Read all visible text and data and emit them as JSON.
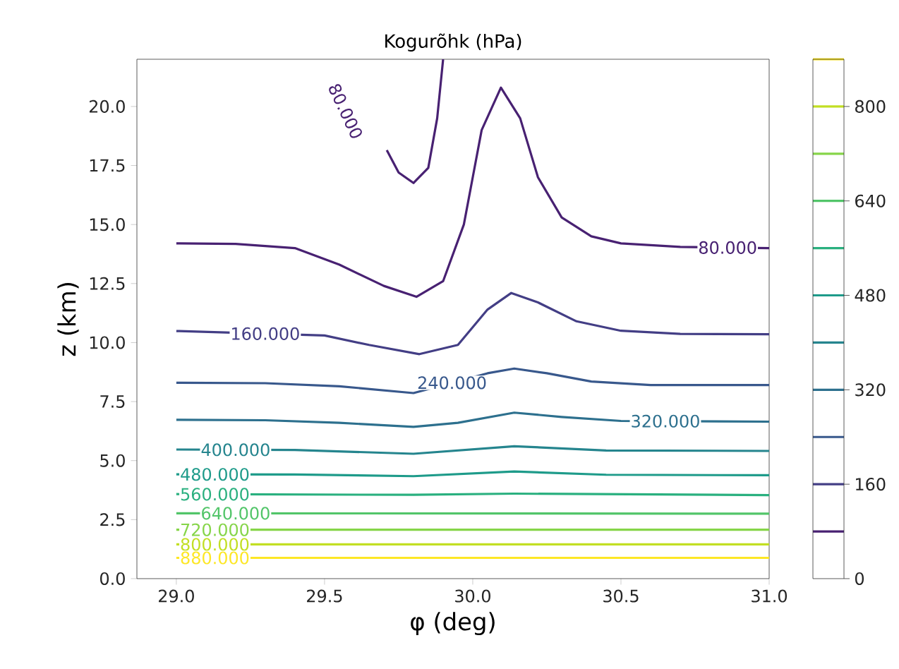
{
  "chart_data": {
    "type": "line",
    "title": "Kogurõhk (hPa)",
    "xlabel": "φ (deg)",
    "ylabel": "z (km)",
    "xlim": [
      28.867,
      31.0
    ],
    "ylim": [
      0,
      22
    ],
    "xticks": [
      {
        "value": 29.0,
        "label": "29.0"
      },
      {
        "value": 29.5,
        "label": "29.5"
      },
      {
        "value": 30.0,
        "label": "30.0"
      },
      {
        "value": 30.5,
        "label": "30.5"
      },
      {
        "value": 31.0,
        "label": "31.0"
      }
    ],
    "yticks": [
      {
        "value": 0,
        "label": "0.0"
      },
      2.5,
      {
        "value": 5,
        "label": "5.0"
      },
      7.5,
      {
        "value": 10,
        "label": "10.0"
      },
      12.5,
      {
        "value": 15,
        "label": "15.0"
      },
      17.5,
      {
        "value": 20,
        "label": "20.0"
      }
    ],
    "grid": false,
    "marker": "none",
    "line_style": "solid",
    "annotations": [
      "80.000",
      "0",
      "160",
      "320",
      "480",
      "640",
      "800"
    ],
    "series": [
      {
        "name": "80.000",
        "color": "#482172",
        "x": [
          29.0,
          29.2,
          29.4,
          29.55,
          29.7,
          29.81,
          29.9,
          29.97,
          30.03,
          30.095,
          30.16,
          30.22,
          30.3,
          30.4,
          30.5,
          30.7,
          31.0,
          30.0,
          29.71,
          29.75,
          29.8,
          29.85,
          29.88,
          29.9
        ],
        "values": [
          14.2,
          14.18,
          14.0,
          13.3,
          12.4,
          11.94,
          12.6,
          15.0,
          19.0,
          20.8,
          19.5,
          17.0,
          15.3,
          14.5,
          14.2,
          14.05,
          14.0,
          null,
          18.15,
          17.2,
          16.76,
          17.4,
          19.5,
          22.0
        ]
      },
      {
        "name": "160.000",
        "color": "#433e85",
        "x": [
          29.0,
          29.5,
          29.65,
          29.82,
          29.95,
          30.05,
          30.13,
          30.22,
          30.35,
          30.5,
          30.7,
          31.0
        ],
        "values": [
          10.49,
          10.3,
          9.9,
          9.51,
          9.9,
          11.4,
          12.1,
          11.7,
          10.9,
          10.5,
          10.37,
          10.35
        ]
      },
      {
        "name": "240.000",
        "color": "#38588c",
        "x": [
          29.0,
          29.3,
          29.55,
          29.8,
          30.05,
          30.14,
          30.25,
          30.4,
          30.6,
          31.0
        ],
        "values": [
          8.3,
          8.28,
          8.15,
          7.86,
          8.7,
          8.9,
          8.7,
          8.35,
          8.2,
          8.2
        ]
      },
      {
        "name": "320.000",
        "color": "#2d708e",
        "x": [
          29.0,
          29.3,
          29.55,
          29.8,
          29.95,
          30.14,
          30.3,
          30.5,
          31.0
        ],
        "values": [
          6.73,
          6.71,
          6.6,
          6.43,
          6.6,
          7.03,
          6.85,
          6.68,
          6.65
        ]
      },
      {
        "name": "400.000",
        "color": "#25858e",
        "x": [
          29.0,
          29.4,
          29.8,
          30.14,
          30.45,
          31.0
        ],
        "values": [
          5.47,
          5.45,
          5.29,
          5.61,
          5.43,
          5.41
        ]
      },
      {
        "name": "480.000",
        "color": "#1e9b8a",
        "x": [
          29.0,
          29.4,
          29.8,
          30.14,
          30.45,
          31.0
        ],
        "values": [
          4.42,
          4.41,
          4.34,
          4.54,
          4.4,
          4.38
        ]
      },
      {
        "name": "560.000",
        "color": "#2ab07f",
        "x": [
          29.0,
          29.8,
          30.14,
          31.0
        ],
        "values": [
          3.58,
          3.55,
          3.6,
          3.54
        ]
      },
      {
        "name": "640.000",
        "color": "#52c569",
        "x": [
          29.0,
          31.0
        ],
        "values": [
          2.77,
          2.75
        ]
      },
      {
        "name": "720.000",
        "color": "#86d549",
        "x": [
          29.0,
          31.0
        ],
        "values": [
          2.07,
          2.07
        ]
      },
      {
        "name": "800.000",
        "color": "#c2df23",
        "x": [
          29.0,
          31.0
        ],
        "values": [
          1.45,
          1.45
        ]
      },
      {
        "name": "880.000",
        "color": "#fde725",
        "x": [
          29.0,
          31.0
        ],
        "values": [
          0.88,
          0.88
        ]
      }
    ]
  }
}
